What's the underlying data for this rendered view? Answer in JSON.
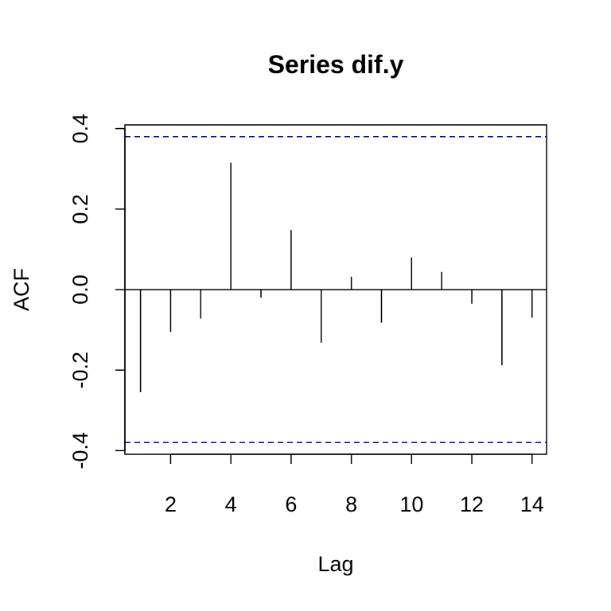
{
  "chart_data": {
    "type": "bar",
    "title": "Series dif.y",
    "xlabel": "Lag",
    "ylabel": "ACF",
    "x": [
      1,
      2,
      3,
      4,
      5,
      6,
      7,
      8,
      9,
      10,
      11,
      12,
      13,
      14
    ],
    "values": [
      -0.255,
      -0.105,
      -0.072,
      0.315,
      -0.02,
      0.148,
      -0.132,
      0.032,
      -0.082,
      0.08,
      0.044,
      -0.035,
      -0.188,
      -0.07
    ],
    "xlim": [
      0.5,
      14.5
    ],
    "ylim": [
      -0.4,
      0.4
    ],
    "xticks": [
      2,
      4,
      6,
      8,
      10,
      12,
      14
    ],
    "yticks": [
      -0.4,
      -0.2,
      0.0,
      0.2,
      0.4
    ],
    "ytick_labels": [
      "-0.4",
      "-0.2",
      "0.0",
      "0.2",
      "0.4"
    ],
    "confidence_bounds": [
      0.38,
      -0.38
    ],
    "zero_line": 0,
    "grid": false,
    "colors": {
      "spikes": "#000000",
      "bounds": "#0000cc",
      "axes": "#000000"
    }
  }
}
